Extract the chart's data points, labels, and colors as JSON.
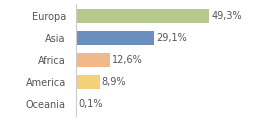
{
  "categories": [
    "Europa",
    "Asia",
    "Africa",
    "America",
    "Oceania"
  ],
  "values": [
    49.3,
    29.1,
    12.6,
    8.9,
    0.1
  ],
  "labels": [
    "49,3%",
    "29,1%",
    "12,6%",
    "8,9%",
    "0,1%"
  ],
  "bar_colors": [
    "#b5c98e",
    "#6c8ebf",
    "#f0b98a",
    "#f5d07a",
    "#cccccc"
  ],
  "background_color": "#ffffff",
  "xlim": [
    0,
    60
  ],
  "label_fontsize": 7.0,
  "tick_fontsize": 7.0,
  "bar_height": 0.62
}
